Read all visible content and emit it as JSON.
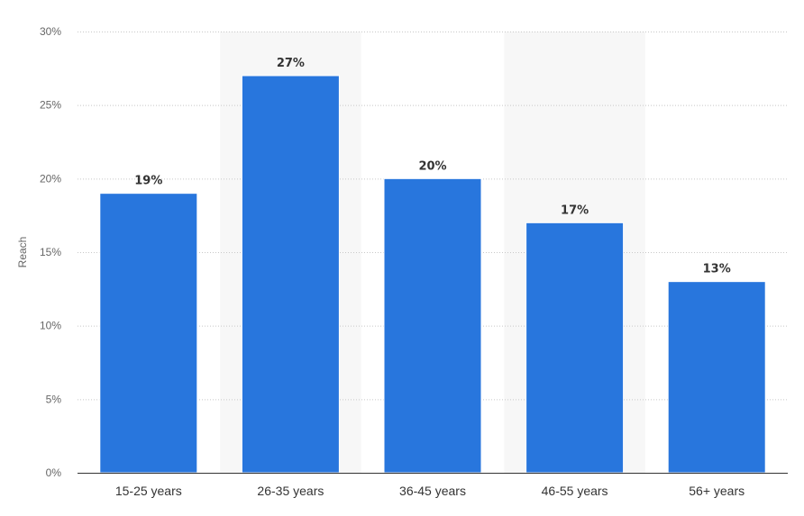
{
  "chart_data": {
    "type": "bar",
    "categories": [
      "15-25 years",
      "26-35 years",
      "36-45 years",
      "46-55 years",
      "56+ years"
    ],
    "values": [
      19,
      27,
      20,
      17,
      13
    ],
    "data_labels": [
      "19%",
      "27%",
      "20%",
      "17%",
      "13%"
    ],
    "title": "",
    "xlabel": "",
    "ylabel": "Reach",
    "ylim": [
      0,
      30
    ],
    "yticks": [
      0,
      5,
      10,
      15,
      20,
      25,
      30
    ],
    "ytick_labels": [
      "0%",
      "5%",
      "10%",
      "15%",
      "20%",
      "25%",
      "30%"
    ],
    "grid": true,
    "legend": "none"
  },
  "colors": {
    "bar": "#2876dd",
    "band": "#f7f7f7",
    "grid": "#c8c8c8",
    "axis": "#333333"
  }
}
